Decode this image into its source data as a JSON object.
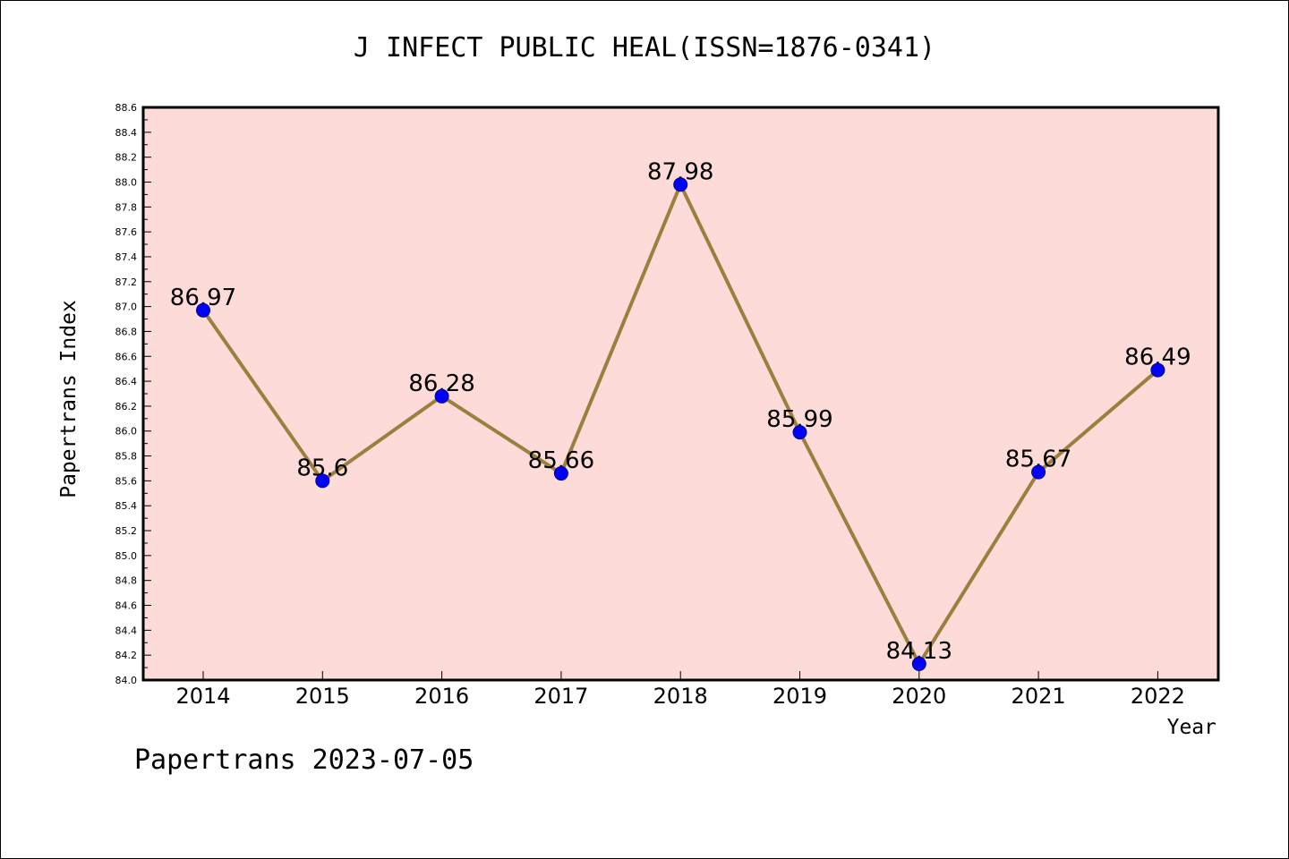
{
  "chart_data": {
    "type": "line",
    "title": "J INFECT PUBLIC HEAL(ISSN=1876-0341)",
    "xlabel": "Year",
    "ylabel": "Papertrans Index",
    "categories": [
      "2014",
      "2015",
      "2016",
      "2017",
      "2018",
      "2019",
      "2020",
      "2021",
      "2022"
    ],
    "series": [
      {
        "values": [
          86.97,
          85.6,
          86.28,
          85.66,
          87.98,
          85.99,
          84.13,
          85.67,
          86.49
        ],
        "labels": [
          "86.97",
          "85.6",
          "86.28",
          "85.66",
          "87.98",
          "85.99",
          "84.13",
          "85.67",
          "86.49"
        ]
      }
    ],
    "ylim": [
      84.0,
      88.6
    ],
    "yticks": [
      "84.0",
      "84.2",
      "84.4",
      "84.6",
      "84.8",
      "85.0",
      "85.2",
      "85.4",
      "85.6",
      "85.8",
      "86.0",
      "86.2",
      "86.4",
      "86.6",
      "86.8",
      "87.0",
      "87.2",
      "87.4",
      "87.6",
      "87.8",
      "88.0",
      "88.2",
      "88.4",
      "88.6"
    ],
    "grid": false,
    "colors": {
      "plot_background": "#fddbd9",
      "line": "#9b7f3d",
      "marker": "#0000ff"
    }
  },
  "footer": {
    "text": "Papertrans 2023-07-05"
  }
}
